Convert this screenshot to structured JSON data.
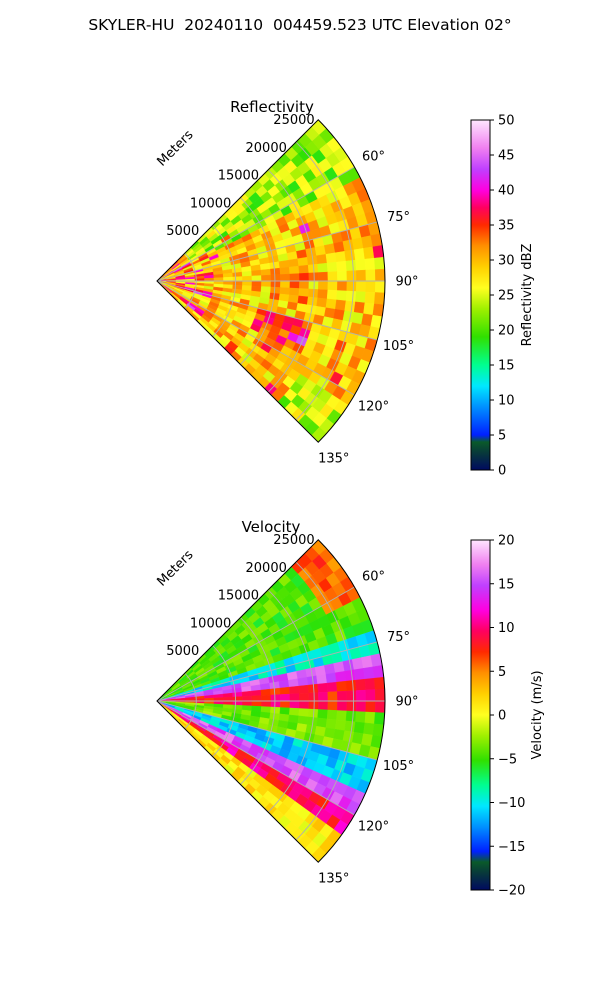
{
  "figure": {
    "suptitle": "SKYLER-HU  20240110  004459.523 UTC Elevation 02°"
  },
  "chart_data": [
    {
      "type": "heatmap",
      "title": "Reflectivity",
      "projection": "polar sector",
      "azimuth_range_deg": [
        45,
        135
      ],
      "azimuth_ticks": [
        "60°",
        "75°",
        "90°",
        "105°",
        "120°",
        "135°"
      ],
      "azimuth_tick_values": [
        60,
        75,
        90,
        105,
        120,
        135
      ],
      "range_label": "Meters",
      "range_ticks": [
        "5000",
        "10000",
        "15000",
        "20000",
        "25000"
      ],
      "range_tick_values": [
        5000,
        10000,
        15000,
        20000,
        25000
      ],
      "range_max": 29000,
      "grid": true,
      "colorbar": {
        "label": "Reflectivity dBZ",
        "vmin": 0,
        "vmax": 50,
        "ticks": [
          "0",
          "5",
          "10",
          "15",
          "20",
          "25",
          "30",
          "35",
          "40",
          "45",
          "50"
        ],
        "tick_values": [
          0,
          5,
          10,
          15,
          20,
          25,
          30,
          35,
          40,
          45,
          50
        ]
      },
      "field_summary": {
        "typical_value": 28,
        "features": [
          {
            "azimuth_deg": 58,
            "range_m": 7000,
            "value": 21,
            "note": "weak echo along left edge"
          },
          {
            "azimuth_deg": 100,
            "range_m": 4000,
            "value": 36,
            "note": "strong near-radar streaks"
          },
          {
            "azimuth_deg": 110,
            "range_m": 16000,
            "value": 36,
            "note": "band of high reflectivity"
          },
          {
            "azimuth_deg": 128,
            "range_m": 27000,
            "value": 22,
            "note": "weaker echo at far lower edge"
          }
        ]
      }
    },
    {
      "type": "heatmap",
      "title": "Velocity",
      "projection": "polar sector",
      "azimuth_range_deg": [
        45,
        135
      ],
      "azimuth_ticks": [
        "60°",
        "75°",
        "90°",
        "105°",
        "120°",
        "135°"
      ],
      "azimuth_tick_values": [
        60,
        75,
        90,
        105,
        120,
        135
      ],
      "range_label": "Meters",
      "range_ticks": [
        "5000",
        "10000",
        "15000",
        "20000",
        "25000"
      ],
      "range_tick_values": [
        5000,
        10000,
        15000,
        20000,
        25000
      ],
      "range_max": 29000,
      "grid": true,
      "colorbar": {
        "label": "Velocity (m/s)",
        "vmin": -20,
        "vmax": 20,
        "ticks": [
          "−20",
          "−15",
          "−10",
          "−5",
          "0",
          "5",
          "10",
          "15",
          "20"
        ],
        "tick_values": [
          -20,
          -15,
          -10,
          -5,
          0,
          5,
          10,
          15,
          20
        ]
      },
      "field_summary": {
        "bands": [
          {
            "azimuth_deg": [
              45,
              70
            ],
            "value": -4,
            "note": "yellow-green, red near outer edge"
          },
          {
            "azimuth_deg": [
              72,
              78
            ],
            "value": -10,
            "note": "green/cyan band"
          },
          {
            "azimuth_deg": [
              78,
              84
            ],
            "value": 15,
            "note": "magenta band"
          },
          {
            "azimuth_deg": [
              84,
              92
            ],
            "value": 9,
            "note": "red band"
          },
          {
            "azimuth_deg": [
              92,
              104
            ],
            "value": -3,
            "note": "yellow-green band"
          },
          {
            "azimuth_deg": [
              104,
              114
            ],
            "value": -11,
            "note": "cyan band"
          },
          {
            "azimuth_deg": [
              114,
              121
            ],
            "value": 15,
            "note": "magenta band"
          },
          {
            "azimuth_deg": [
              121,
              127
            ],
            "value": 10,
            "note": "red band"
          },
          {
            "azimuth_deg": [
              127,
              135
            ],
            "value": 2,
            "note": "yellow/orange band"
          }
        ]
      }
    }
  ]
}
